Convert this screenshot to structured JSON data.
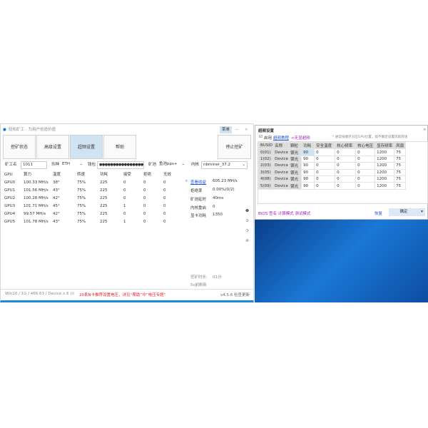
{
  "window": {
    "title": "轻松矿工 - 为用户创造价值",
    "menu": "菜单",
    "minimize": "—",
    "close": "×"
  },
  "tabs": [
    {
      "label": "挖矿状态"
    },
    {
      "label": "高级设置"
    },
    {
      "label": "超频设置",
      "active": true
    },
    {
      "label": "帮助"
    }
  ],
  "stop_button": "停止挖矿",
  "fields": {
    "miner_label": "矿工名",
    "miner": "1011",
    "coin_label": "币种",
    "coin": "ETH",
    "wallet_label": "钱包",
    "wallet": "●●●●●●●●●●●●●●●●●●",
    "pool_label": "矿池",
    "pool": "鱼池pps+",
    "kernel_label": "内核",
    "kernel": "nbminer_37.2"
  },
  "table": {
    "headers": [
      "GPU",
      "算力",
      "温度",
      "转速",
      "功耗",
      "接受",
      "拒绝",
      "无效"
    ],
    "rows": [
      [
        "GPU0",
        "100.33 MH/s",
        "38°",
        "75%",
        "225",
        "0",
        "0",
        "0"
      ],
      [
        "GPU1",
        "101.56 MH/s",
        "43°",
        "75%",
        "225",
        "0",
        "0",
        "0"
      ],
      [
        "GPU2",
        "100.28 MH/s",
        "42°",
        "75%",
        "225",
        "0",
        "0",
        "0"
      ],
      [
        "GPU3",
        "101.71 MH/s",
        "45°",
        "75%",
        "225",
        "1",
        "0",
        "0"
      ],
      [
        "GPU4",
        "99.57 MH/s",
        "42°",
        "75%",
        "225",
        "0",
        "0",
        "0"
      ],
      [
        "GPU5",
        "101.78 MH/s",
        "43°",
        "75%",
        "225",
        "1",
        "0",
        "0"
      ]
    ]
  },
  "stats": {
    "earnings_link": "查看收益",
    "hashrate": "605.23 MH/s",
    "reject_label": "拒绝率",
    "reject": "0.00%(0/2)",
    "latency_label": "矿池延时",
    "latency": "40ms",
    "restart_label": "内核重启",
    "restart": "0",
    "power_label": "显卡功耗",
    "power": "1350",
    "duration_label": "挖矿时长:",
    "duration": "01分",
    "refresh": "5s前刷新"
  },
  "pages": [
    "❶",
    "②",
    "③",
    "④"
  ],
  "status": {
    "system": "Win10  / 1G / 466.63 / Device x 6 (i)",
    "notice": "20系N卡推荐设置电压，详见“帮助”中“电压专题”",
    "version": "v4.5.6 检查更新"
  },
  "dialog": {
    "title": "超频设置",
    "close": "×",
    "enable": "启用",
    "tutorial": "超频教程",
    "no_display": "<无显超频",
    "note": "* 通常按顺序对应GPU位置，如不确定设置风扇转速",
    "headers": [
      "BUSID",
      "名称",
      "颗粒",
      "功耗",
      "安全温度",
      "核心频率",
      "核心电压",
      "显存频率",
      "风扇"
    ],
    "rows": [
      [
        "0(01)",
        "Device",
        "镁光",
        "90",
        "0",
        "0",
        "0",
        "1200",
        "75"
      ],
      [
        "1(02)",
        "Device",
        "镁光",
        "90",
        "0",
        "0",
        "0",
        "1200",
        "75"
      ],
      [
        "2(03)",
        "Device",
        "镁光",
        "90",
        "0",
        "0",
        "0",
        "1200",
        "75"
      ],
      [
        "3(05)",
        "Device",
        "镁光",
        "90",
        "0",
        "0",
        "0",
        "1200",
        "75"
      ],
      [
        "4(08)",
        "Device",
        "镁光",
        "90",
        "0",
        "0",
        "0",
        "1200",
        "75"
      ],
      [
        "5(09)",
        "Device",
        "镁光",
        "90",
        "0",
        "0",
        "0",
        "1200",
        "75"
      ]
    ],
    "footer_links": "BIOS 签名 计算模式 测试模式",
    "restore": "恢复",
    "ok": "确定",
    "dropdown": "▾"
  },
  "colors": {
    "accent": "#1e88d8",
    "active_tab": "#cfe3f3",
    "notice": "#e0202a",
    "link": "#1a4fd8"
  }
}
